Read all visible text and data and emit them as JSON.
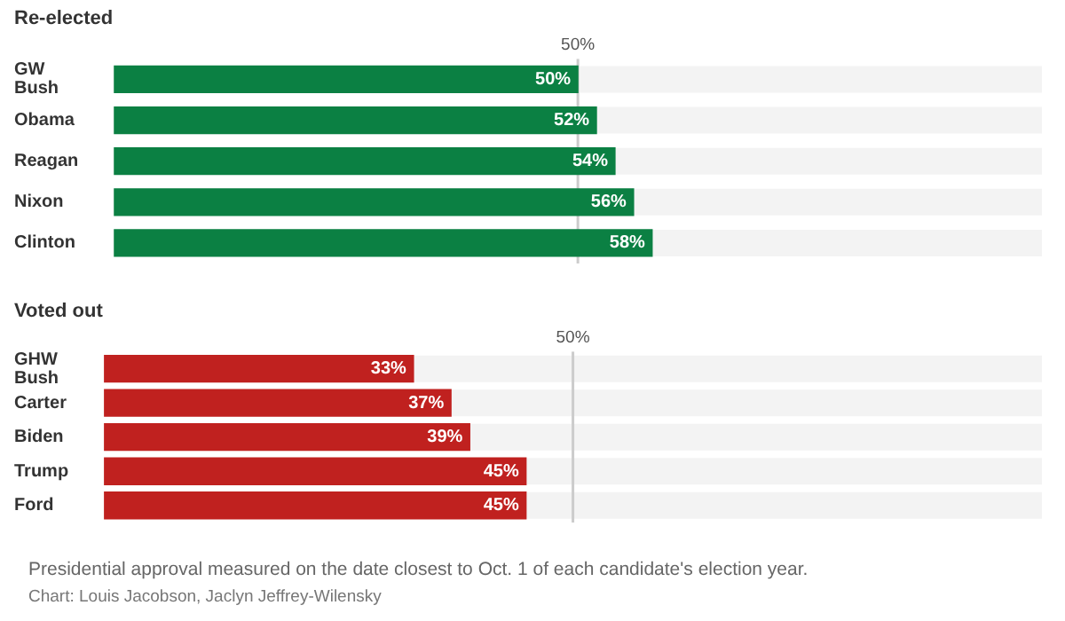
{
  "chart_data": [
    {
      "type": "bar",
      "orientation": "horizontal",
      "title": "Re-elected",
      "categories": [
        "GW Bush",
        "Obama",
        "Reagan",
        "Nixon",
        "Clinton"
      ],
      "values": [
        50,
        52,
        54,
        56,
        58
      ],
      "value_labels": [
        "50%",
        "52%",
        "54%",
        "56%",
        "58%"
      ],
      "color": "#0b8043",
      "xlim": [
        0,
        100
      ],
      "tick_labels": "y",
      "legend": false,
      "ref_lines": [
        {
          "axis": "x",
          "value": 50,
          "label": "50%",
          "color": "#cccccc"
        }
      ]
    },
    {
      "type": "bar",
      "orientation": "horizontal",
      "title": "Voted out",
      "categories": [
        "GHW Bush",
        "Carter",
        "Biden",
        "Trump",
        "Ford"
      ],
      "values": [
        33,
        37,
        39,
        45,
        45
      ],
      "value_labels": [
        "33%",
        "37%",
        "39%",
        "45%",
        "45%"
      ],
      "color": "#c0211f",
      "xlim": [
        0,
        100
      ],
      "tick_labels": "y",
      "legend": false,
      "ref_lines": [
        {
          "axis": "x",
          "value": 50,
          "label": "50%",
          "color": "#cccccc"
        }
      ],
      "annotations": [
        "Presidential approval measured on the date closest to Oct. 1 of each candidate's election year.",
        "Chart: Louis Jacobson, Jaclyn Jeffrey-Wilensky"
      ]
    }
  ]
}
